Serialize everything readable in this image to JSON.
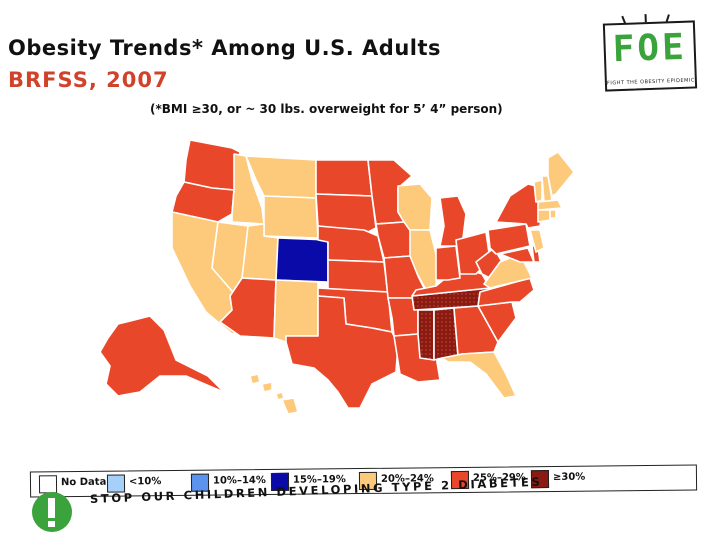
{
  "header": {
    "title": "Obesity Trends* Among U.S. Adults",
    "subtitle": "BRFSS, 2007",
    "footnote": "(*BMI ≥30, or ~ 30 lbs. overweight for 5’ 4” person)"
  },
  "logo": {
    "text": "FOE",
    "tagline": "FIGHT THE OBESITY EPIDEMIC"
  },
  "colors": {
    "no_data": "#ffffff",
    "lt10": "#a6d0f7",
    "b10_14": "#5b93ee",
    "b15_19": "#0a0aa8",
    "b20_24": "#fdc97a",
    "b25_29": "#e8472a",
    "ge30": "#8b1a12",
    "outline": "#ffffff",
    "title_accent": "#d0432a",
    "logo_green": "#3aa33b"
  },
  "legend": [
    {
      "label": "No Data",
      "color_key": "no_data"
    },
    {
      "label": "<10%",
      "color_key": "lt10"
    },
    {
      "label": "10%–14%",
      "color_key": "b10_14"
    },
    {
      "label": "15%–19%",
      "color_key": "b15_19"
    },
    {
      "label": "20%–24%",
      "color_key": "b20_24"
    },
    {
      "label": "25%–29%",
      "color_key": "b25_29"
    },
    {
      "label": "≥30%",
      "color_key": "ge30"
    }
  ],
  "slogan": "STOP OUR CHILDREN DEVELOPING TYPE 2 DIABETES",
  "map_categories": {
    "b15_19": [
      "Colorado"
    ],
    "b20_24": [
      "California",
      "Nevada",
      "Utah",
      "Idaho",
      "Montana",
      "Wyoming",
      "New Mexico",
      "Hawaii",
      "Florida",
      "Wisconsin",
      "Illinois",
      "Virginia",
      "New Jersey",
      "Maine",
      "New Hampshire",
      "Vermont",
      "Massachusetts",
      "Connecticut",
      "Rhode Island"
    ],
    "b25_29": [
      "Washington",
      "Oregon",
      "Arizona",
      "Alaska",
      "North Dakota",
      "South Dakota",
      "Nebraska",
      "Kansas",
      "Oklahoma",
      "Texas",
      "Minnesota",
      "Iowa",
      "Missouri",
      "Arkansas",
      "Louisiana",
      "Michigan",
      "Indiana",
      "Ohio",
      "Kentucky",
      "West Virginia",
      "Pennsylvania",
      "New York",
      "Maryland",
      "Delaware",
      "North Carolina",
      "South Carolina",
      "Georgia"
    ],
    "ge30": [
      "Tennessee",
      "Mississippi",
      "Alabama"
    ]
  }
}
